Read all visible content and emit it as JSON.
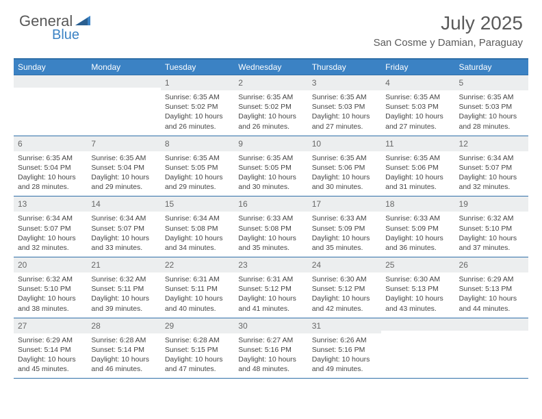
{
  "logo": {
    "word1": "General",
    "word2": "Blue"
  },
  "title": "July 2025",
  "location": "San Cosme y Damian, Paraguay",
  "colors": {
    "header_bg": "#3b82c4",
    "border": "#2f6fa8",
    "daynum_bg": "#eceeef",
    "text": "#444444",
    "title": "#5a5a5a"
  },
  "day_headers": [
    "Sunday",
    "Monday",
    "Tuesday",
    "Wednesday",
    "Thursday",
    "Friday",
    "Saturday"
  ],
  "labels": {
    "sunrise": "Sunrise:",
    "sunset": "Sunset:",
    "daylight": "Daylight:"
  },
  "weeks": [
    [
      null,
      null,
      {
        "n": 1,
        "sr": "6:35 AM",
        "ss": "5:02 PM",
        "dl": "10 hours and 26 minutes."
      },
      {
        "n": 2,
        "sr": "6:35 AM",
        "ss": "5:02 PM",
        "dl": "10 hours and 26 minutes."
      },
      {
        "n": 3,
        "sr": "6:35 AM",
        "ss": "5:03 PM",
        "dl": "10 hours and 27 minutes."
      },
      {
        "n": 4,
        "sr": "6:35 AM",
        "ss": "5:03 PM",
        "dl": "10 hours and 27 minutes."
      },
      {
        "n": 5,
        "sr": "6:35 AM",
        "ss": "5:03 PM",
        "dl": "10 hours and 28 minutes."
      }
    ],
    [
      {
        "n": 6,
        "sr": "6:35 AM",
        "ss": "5:04 PM",
        "dl": "10 hours and 28 minutes."
      },
      {
        "n": 7,
        "sr": "6:35 AM",
        "ss": "5:04 PM",
        "dl": "10 hours and 29 minutes."
      },
      {
        "n": 8,
        "sr": "6:35 AM",
        "ss": "5:05 PM",
        "dl": "10 hours and 29 minutes."
      },
      {
        "n": 9,
        "sr": "6:35 AM",
        "ss": "5:05 PM",
        "dl": "10 hours and 30 minutes."
      },
      {
        "n": 10,
        "sr": "6:35 AM",
        "ss": "5:06 PM",
        "dl": "10 hours and 30 minutes."
      },
      {
        "n": 11,
        "sr": "6:35 AM",
        "ss": "5:06 PM",
        "dl": "10 hours and 31 minutes."
      },
      {
        "n": 12,
        "sr": "6:34 AM",
        "ss": "5:07 PM",
        "dl": "10 hours and 32 minutes."
      }
    ],
    [
      {
        "n": 13,
        "sr": "6:34 AM",
        "ss": "5:07 PM",
        "dl": "10 hours and 32 minutes."
      },
      {
        "n": 14,
        "sr": "6:34 AM",
        "ss": "5:07 PM",
        "dl": "10 hours and 33 minutes."
      },
      {
        "n": 15,
        "sr": "6:34 AM",
        "ss": "5:08 PM",
        "dl": "10 hours and 34 minutes."
      },
      {
        "n": 16,
        "sr": "6:33 AM",
        "ss": "5:08 PM",
        "dl": "10 hours and 35 minutes."
      },
      {
        "n": 17,
        "sr": "6:33 AM",
        "ss": "5:09 PM",
        "dl": "10 hours and 35 minutes."
      },
      {
        "n": 18,
        "sr": "6:33 AM",
        "ss": "5:09 PM",
        "dl": "10 hours and 36 minutes."
      },
      {
        "n": 19,
        "sr": "6:32 AM",
        "ss": "5:10 PM",
        "dl": "10 hours and 37 minutes."
      }
    ],
    [
      {
        "n": 20,
        "sr": "6:32 AM",
        "ss": "5:10 PM",
        "dl": "10 hours and 38 minutes."
      },
      {
        "n": 21,
        "sr": "6:32 AM",
        "ss": "5:11 PM",
        "dl": "10 hours and 39 minutes."
      },
      {
        "n": 22,
        "sr": "6:31 AM",
        "ss": "5:11 PM",
        "dl": "10 hours and 40 minutes."
      },
      {
        "n": 23,
        "sr": "6:31 AM",
        "ss": "5:12 PM",
        "dl": "10 hours and 41 minutes."
      },
      {
        "n": 24,
        "sr": "6:30 AM",
        "ss": "5:12 PM",
        "dl": "10 hours and 42 minutes."
      },
      {
        "n": 25,
        "sr": "6:30 AM",
        "ss": "5:13 PM",
        "dl": "10 hours and 43 minutes."
      },
      {
        "n": 26,
        "sr": "6:29 AM",
        "ss": "5:13 PM",
        "dl": "10 hours and 44 minutes."
      }
    ],
    [
      {
        "n": 27,
        "sr": "6:29 AM",
        "ss": "5:14 PM",
        "dl": "10 hours and 45 minutes."
      },
      {
        "n": 28,
        "sr": "6:28 AM",
        "ss": "5:14 PM",
        "dl": "10 hours and 46 minutes."
      },
      {
        "n": 29,
        "sr": "6:28 AM",
        "ss": "5:15 PM",
        "dl": "10 hours and 47 minutes."
      },
      {
        "n": 30,
        "sr": "6:27 AM",
        "ss": "5:16 PM",
        "dl": "10 hours and 48 minutes."
      },
      {
        "n": 31,
        "sr": "6:26 AM",
        "ss": "5:16 PM",
        "dl": "10 hours and 49 minutes."
      },
      null,
      null
    ]
  ]
}
